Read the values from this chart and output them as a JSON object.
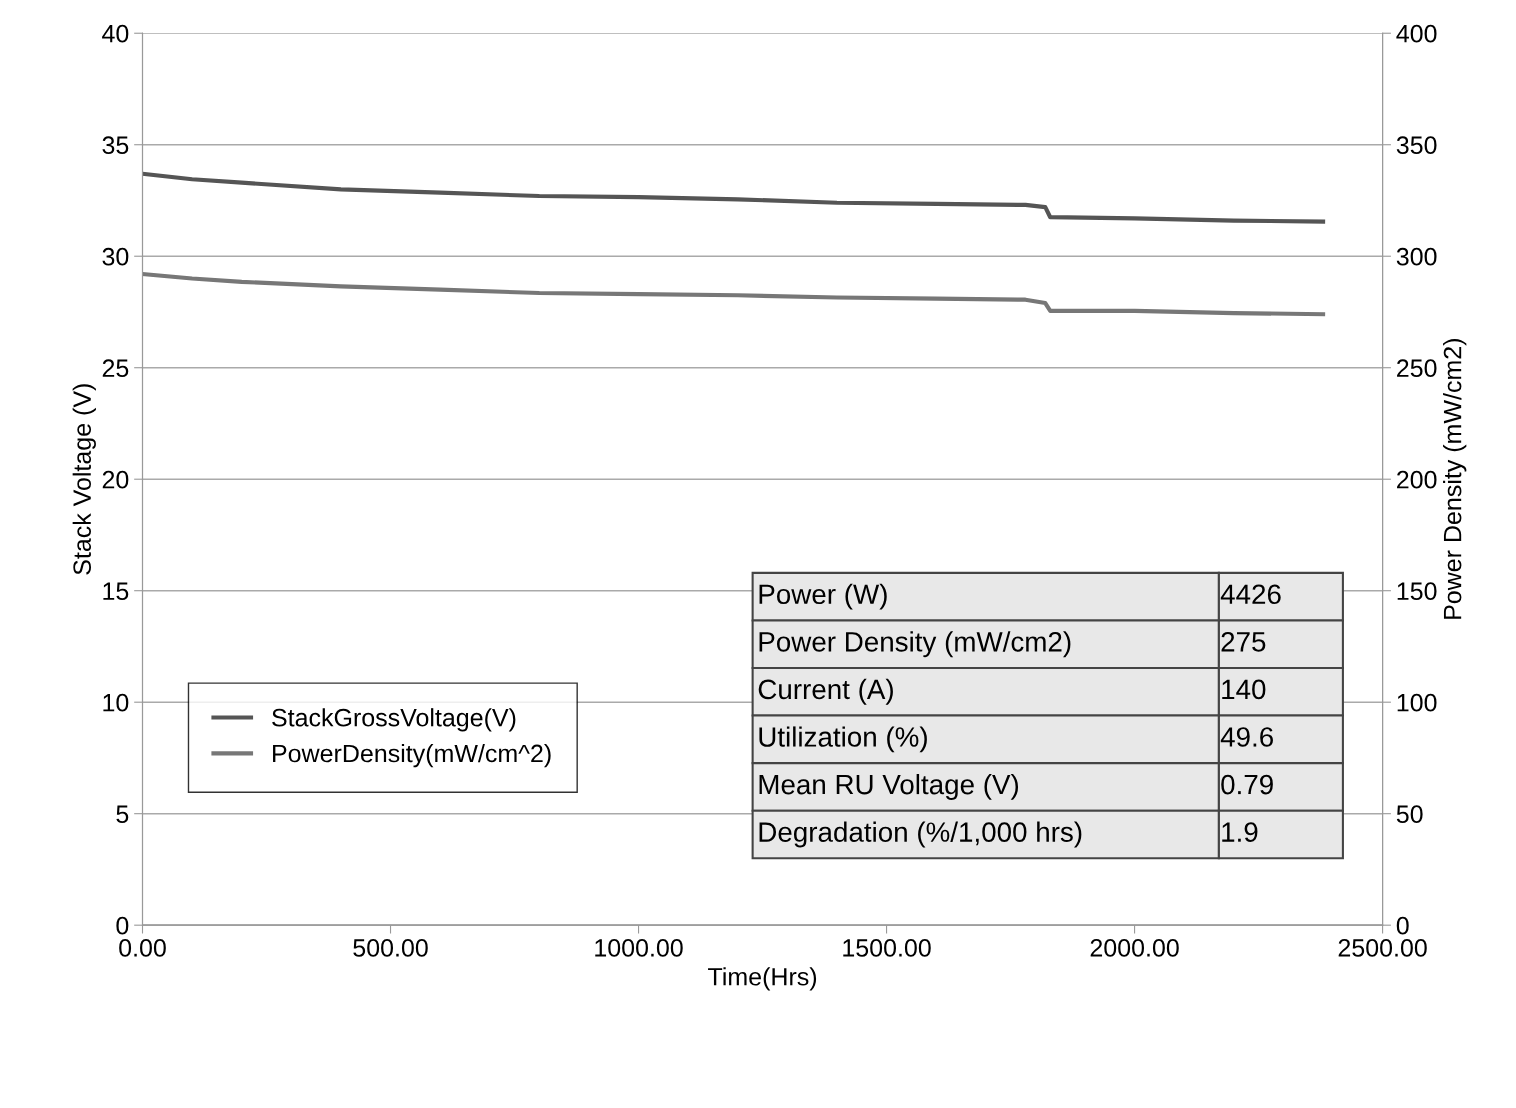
{
  "chart_data": {
    "type": "line",
    "xlabel": "Time(Hrs)",
    "ylabel": "Stack Voltage (V)",
    "y2label": "Power Density (mW/cm2)",
    "xlim": [
      0,
      2500
    ],
    "xticks": [
      {
        "value": 0,
        "label": "0.00"
      },
      {
        "value": 500,
        "label": "500.00"
      },
      {
        "value": 1000,
        "label": "1000.00"
      },
      {
        "value": 1500,
        "label": "1500.00"
      },
      {
        "value": 2000,
        "label": "2000.00"
      },
      {
        "value": 2500,
        "label": "2500.00"
      }
    ],
    "ylim": [
      0,
      40
    ],
    "yticks": [
      0,
      5,
      10,
      15,
      20,
      25,
      30,
      35,
      40
    ],
    "y2lim": [
      0,
      400
    ],
    "y2ticks": [
      0,
      50,
      100,
      150,
      200,
      250,
      300,
      350,
      400
    ],
    "grid": "y",
    "legend": "bottom left",
    "marker": "none",
    "line_style": "solid",
    "x": [
      0,
      100,
      200,
      400,
      600,
      800,
      1000,
      1200,
      1400,
      1600,
      1780,
      1820,
      1830,
      2000,
      2200,
      2380
    ],
    "series": [
      {
        "name": "StackGrossVoltage(V)",
        "color": "#555555",
        "values": [
          33.7,
          33.45,
          33.3,
          33.0,
          32.85,
          32.7,
          32.65,
          32.55,
          32.4,
          32.35,
          32.3,
          32.2,
          31.75,
          31.7,
          31.6,
          31.55
        ]
      },
      {
        "name": "PowerDensity(mW/cm^2)",
        "color": "#777777",
        "axis": "y2",
        "values": [
          292,
          290,
          288.5,
          286.5,
          285,
          283.5,
          283,
          282.5,
          281.5,
          281,
          280.5,
          279,
          275.5,
          275.5,
          274.5,
          274
        ]
      }
    ],
    "annotations": [
      "Power (W)",
      "4426",
      "Power Density (mW/cm2)",
      "275",
      "Current (A)",
      "140",
      "Utilization (%)",
      "49.6",
      "Mean RU Voltage (V)",
      "0.79",
      "Degradation (%/1,000 hrs)",
      "1.9"
    ]
  }
}
